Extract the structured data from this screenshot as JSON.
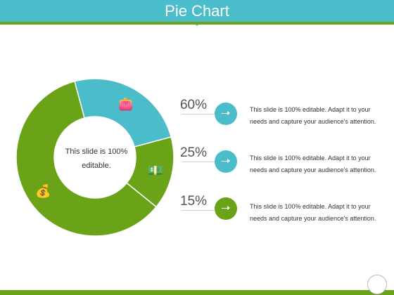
{
  "header": {
    "title": "Pie Chart",
    "color": "#4bbcca",
    "stripe_color": "#6aa318"
  },
  "center_text": {
    "line1": "This slide is 100%",
    "line2": "editable."
  },
  "legend": [
    {
      "percent": "60%",
      "color": "#4bbcca",
      "text_line1": "This slide is 100% editable. Adapt it to your",
      "text_line2": "needs and capture your audience's attention."
    },
    {
      "percent": "25%",
      "color": "#4bbcca",
      "text_line1": "This slide is 100% editable. Adapt it to your",
      "text_line2": "needs and capture your audience's attention."
    },
    {
      "percent": "15%",
      "color": "#6aa318",
      "text_line1": "This slide is 100% editable. Adapt it to your",
      "text_line2": "needs and capture your audience's attention."
    }
  ],
  "chart_data": {
    "type": "pie",
    "style": "donut",
    "slices": [
      {
        "value": 60,
        "color": "#6aa318",
        "icon": "money-bag-icon"
      },
      {
        "value": 25,
        "color": "#4bbcca",
        "icon": "wallet-icon"
      },
      {
        "value": 15,
        "color": "#6aa318",
        "icon": "cash-stack-icon"
      }
    ],
    "legend_placement": "right"
  }
}
